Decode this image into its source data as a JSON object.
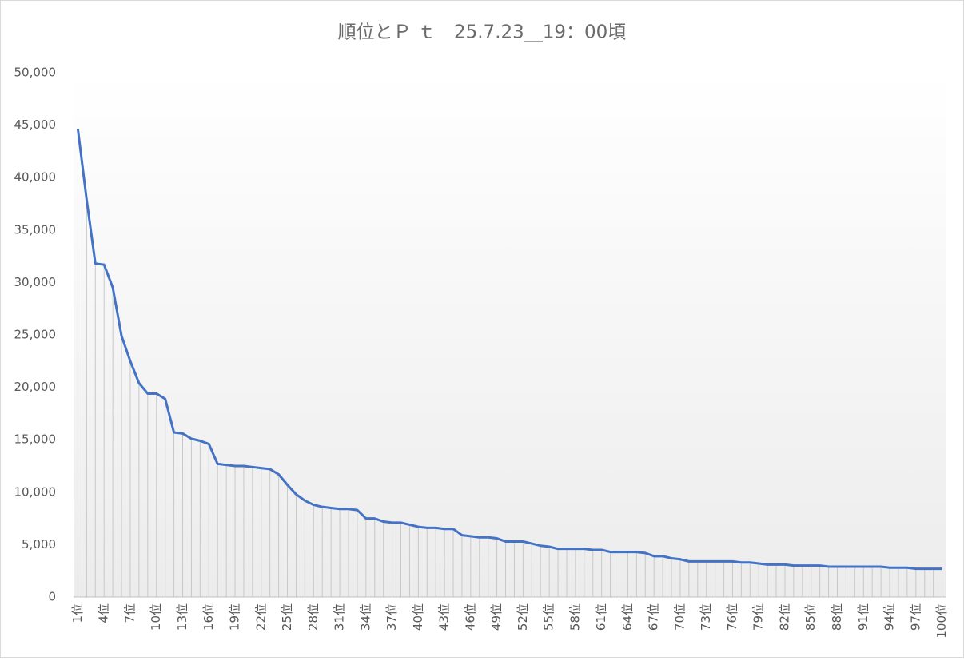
{
  "chart_data": {
    "type": "line",
    "title": "順位とＰ ｔ　25.7.23__19：00頃",
    "categories": [
      "1位",
      null,
      null,
      "4位",
      null,
      null,
      "7位",
      null,
      null,
      "10位",
      null,
      null,
      "13位",
      null,
      null,
      "16位",
      null,
      null,
      "19位",
      null,
      null,
      "22位",
      null,
      null,
      "25位",
      null,
      null,
      "28位",
      null,
      null,
      "31位",
      null,
      null,
      "34位",
      null,
      null,
      "37位",
      null,
      null,
      "40位",
      null,
      null,
      "43位",
      null,
      null,
      "46位",
      null,
      null,
      "49位",
      null,
      null,
      "52位",
      null,
      null,
      "55位",
      null,
      null,
      "58位",
      null,
      null,
      "61位",
      null,
      null,
      "64位",
      null,
      null,
      "67位",
      null,
      null,
      "70位",
      null,
      null,
      "73位",
      null,
      null,
      "76位",
      null,
      null,
      "79位",
      null,
      null,
      "82位",
      null,
      null,
      "85位",
      null,
      null,
      "88位",
      null,
      null,
      "91位",
      null,
      null,
      "94位",
      null,
      null,
      "97位",
      null,
      null,
      "100位"
    ],
    "values": [
      44600,
      37900,
      31800,
      31700,
      29500,
      24900,
      22500,
      20400,
      19400,
      19400,
      18900,
      15700,
      15600,
      15100,
      14900,
      14600,
      12700,
      12600,
      12500,
      12500,
      12400,
      12300,
      12200,
      11700,
      10700,
      9800,
      9200,
      8800,
      8600,
      8500,
      8400,
      8400,
      8300,
      7500,
      7500,
      7200,
      7100,
      7100,
      6900,
      6700,
      6600,
      6600,
      6500,
      6500,
      5900,
      5800,
      5700,
      5700,
      5600,
      5300,
      5300,
      5300,
      5100,
      4900,
      4800,
      4600,
      4600,
      4600,
      4600,
      4500,
      4500,
      4300,
      4300,
      4300,
      4300,
      4200,
      3900,
      3900,
      3700,
      3600,
      3400,
      3400,
      3400,
      3400,
      3400,
      3400,
      3300,
      3300,
      3200,
      3100,
      3100,
      3100,
      3000,
      3000,
      3000,
      3000,
      2900,
      2900,
      2900,
      2900,
      2900,
      2900,
      2900,
      2800,
      2800,
      2800,
      2700,
      2700,
      2700,
      2700
    ],
    "color": "#4472c4",
    "ylim": [
      0,
      50000
    ],
    "yticks": [
      0,
      {
        "value": 5000,
        "label": "5,000"
      },
      {
        "value": 10000,
        "label": "10,000"
      },
      {
        "value": 15000,
        "label": "15,000"
      },
      {
        "value": 20000,
        "label": "20,000"
      },
      {
        "value": 25000,
        "label": "25,000"
      },
      {
        "value": 30000,
        "label": "30,000"
      },
      {
        "value": 35000,
        "label": "35,000"
      },
      {
        "value": 40000,
        "label": "40,000"
      },
      {
        "value": 45000,
        "label": "45,000"
      },
      {
        "value": 50000,
        "label": "50,000"
      }
    ],
    "drop_lines": true
  }
}
